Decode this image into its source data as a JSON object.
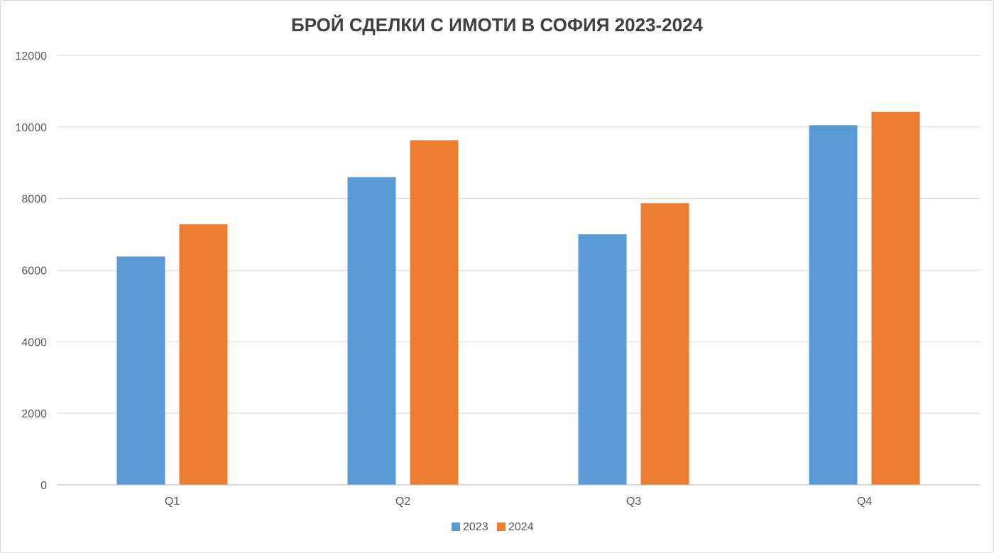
{
  "chart_data": {
    "type": "bar",
    "title": "БРОЙ СДЕЛКИ С ИМОТИ В СОФИЯ 2023-2024",
    "xlabel": "",
    "ylabel": "",
    "categories": [
      "Q1",
      "Q2",
      "Q3",
      "Q4"
    ],
    "series": [
      {
        "name": "2023",
        "color": "#5B9BD5",
        "values": [
          6380,
          8600,
          7000,
          10050
        ]
      },
      {
        "name": "2024",
        "color": "#ED7D31",
        "values": [
          7280,
          9630,
          7870,
          10420
        ]
      }
    ],
    "ylim": [
      0,
      12000
    ],
    "yticks": [
      "0",
      "2000",
      "4000",
      "6000",
      "8000",
      "10000",
      "12000"
    ],
    "grid": true,
    "legend_position": "bottom"
  }
}
